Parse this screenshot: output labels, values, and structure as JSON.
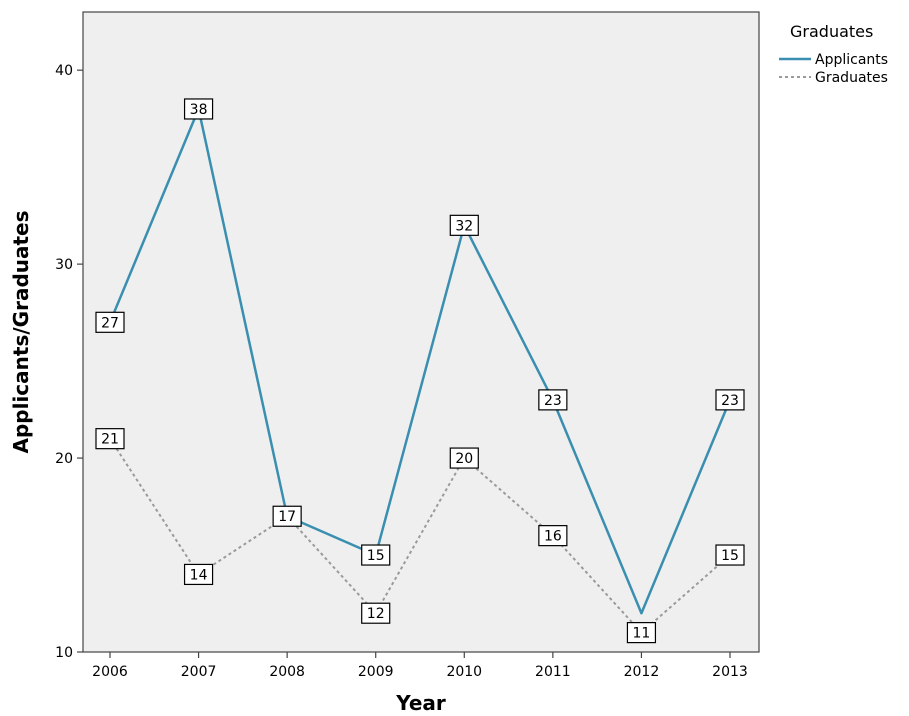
{
  "chart_data": {
    "type": "line",
    "xlabel": "Year",
    "ylabel": "Applicants/Graduates",
    "categories": [
      "2006",
      "2007",
      "2008",
      "2009",
      "2010",
      "2011",
      "2012",
      "2013"
    ],
    "ylim": [
      10,
      43
    ],
    "yticks": [
      "10",
      "20",
      "30",
      "40"
    ],
    "legend": {
      "title": "Graduates",
      "placement": "top-right, outside plot"
    },
    "series": [
      {
        "name": "Applicants",
        "values": [
          27,
          38,
          17,
          15,
          32,
          23,
          12,
          23
        ],
        "color": "#3a8fb0",
        "style": "solid"
      },
      {
        "name": "Graduates",
        "values": [
          21,
          14,
          17,
          12,
          20,
          16,
          11,
          15
        ],
        "color": "#9a9a9a",
        "style": "dotted"
      }
    ],
    "data_labels": {
      "Applicants": [
        "27",
        "38",
        "17",
        "15",
        "32",
        "23",
        "",
        "23"
      ],
      "Graduates": [
        "21",
        "14",
        "",
        "12",
        "20",
        "16",
        "11",
        "15"
      ]
    },
    "plot_background": "#efefef",
    "grid": false
  }
}
